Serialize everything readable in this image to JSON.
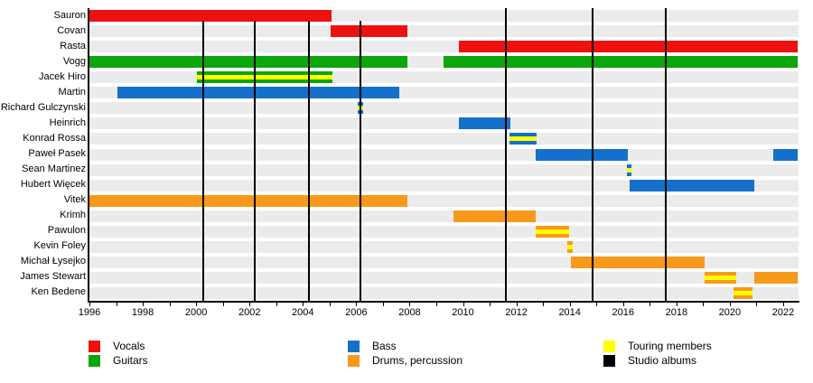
{
  "legend": {
    "columns": [
      [
        {
          "label": "Vocals",
          "color": "#ee1111"
        },
        {
          "label": "Guitars",
          "color": "#0ba60b"
        }
      ],
      [
        {
          "label": "Bass",
          "color": "#1470cb"
        },
        {
          "label": "Drums, percussion",
          "color": "#f7991a"
        }
      ],
      [
        {
          "label": "Touring members",
          "color": "#ffff00"
        },
        {
          "label": "Studio albums",
          "color": "#000000"
        }
      ]
    ]
  },
  "chart_data": {
    "type": "bar",
    "subtype": "gantt-band-member-timeline",
    "x_axis": {
      "start": 1996,
      "end": 2022.6,
      "labeled_years": [
        1996,
        1998,
        2000,
        2002,
        2004,
        2006,
        2008,
        2010,
        2012,
        2014,
        2016,
        2018,
        2020,
        2022
      ],
      "minor_tick_every_years": 1
    },
    "role_colors": {
      "vocals": "#ee1111",
      "guitars": "#0ba60b",
      "bass": "#1470cb",
      "drums": "#f7991a",
      "touring_stripe": "#ffff00",
      "studio_album_line": "#000000"
    },
    "members": [
      {
        "name": "Sauron",
        "role": "vocals",
        "segments": [
          {
            "start": 1996.0,
            "end": 2005.07,
            "touring": false
          }
        ]
      },
      {
        "name": "Covan",
        "role": "vocals",
        "segments": [
          {
            "start": 2005.04,
            "end": 2007.92,
            "touring": false
          }
        ]
      },
      {
        "name": "Rasta",
        "role": "vocals",
        "segments": [
          {
            "start": 2009.85,
            "end": 2022.55,
            "touring": false
          }
        ]
      },
      {
        "name": "Vogg",
        "role": "guitars",
        "segments": [
          {
            "start": 1996.0,
            "end": 2007.92,
            "touring": false
          },
          {
            "start": 2009.27,
            "end": 2022.55,
            "touring": false
          }
        ]
      },
      {
        "name": "Jacek Hiro",
        "role": "guitars",
        "segments": [
          {
            "start": 2000.03,
            "end": 2005.11,
            "touring": true
          }
        ]
      },
      {
        "name": "Martin",
        "role": "bass",
        "segments": [
          {
            "start": 1997.05,
            "end": 2007.61,
            "touring": false
          }
        ]
      },
      {
        "name": "Richard Gulczynski",
        "role": "bass",
        "segments": [
          {
            "start": 2006.05,
            "end": 2006.26,
            "touring": true
          }
        ]
      },
      {
        "name": "Heinrich",
        "role": "bass",
        "segments": [
          {
            "start": 2009.85,
            "end": 2011.78,
            "touring": false
          }
        ]
      },
      {
        "name": "Konrad Rossa",
        "role": "bass",
        "segments": [
          {
            "start": 2011.74,
            "end": 2012.76,
            "touring": true
          }
        ]
      },
      {
        "name": "Paweł Pasek",
        "role": "bass",
        "segments": [
          {
            "start": 2012.73,
            "end": 2016.17,
            "touring": false
          },
          {
            "start": 2021.62,
            "end": 2022.55,
            "touring": false
          }
        ]
      },
      {
        "name": "Sean Martinez",
        "role": "bass",
        "segments": [
          {
            "start": 2016.14,
            "end": 2016.31,
            "touring": true
          }
        ]
      },
      {
        "name": "Hubert Więcek",
        "role": "bass",
        "segments": [
          {
            "start": 2016.25,
            "end": 2020.92,
            "touring": false
          }
        ]
      },
      {
        "name": "Vitek",
        "role": "drums",
        "segments": [
          {
            "start": 1996.0,
            "end": 2007.92,
            "touring": false
          }
        ]
      },
      {
        "name": "Krimh",
        "role": "drums",
        "segments": [
          {
            "start": 2009.64,
            "end": 2012.72,
            "touring": false
          }
        ]
      },
      {
        "name": "Pawulon",
        "role": "drums",
        "segments": [
          {
            "start": 2012.73,
            "end": 2013.97,
            "touring": true
          }
        ]
      },
      {
        "name": "Kevin Foley",
        "role": "drums",
        "segments": [
          {
            "start": 2013.9,
            "end": 2014.1,
            "touring": true
          }
        ]
      },
      {
        "name": "Michał Łysejko",
        "role": "drums",
        "segments": [
          {
            "start": 2014.05,
            "end": 2019.05,
            "touring": false
          }
        ]
      },
      {
        "name": "James Stewart",
        "role": "drums",
        "segments": [
          {
            "start": 2019.05,
            "end": 2020.24,
            "touring": true
          },
          {
            "start": 2020.9,
            "end": 2022.55,
            "touring": false
          }
        ]
      },
      {
        "name": "Ken Bedene",
        "role": "drums",
        "segments": [
          {
            "start": 2020.14,
            "end": 2020.85,
            "touring": true
          }
        ]
      }
    ],
    "studio_albums": {
      "years": [
        2000.27,
        2002.2,
        2004.23,
        2006.16,
        2011.61,
        2014.86,
        2017.6
      ]
    }
  }
}
